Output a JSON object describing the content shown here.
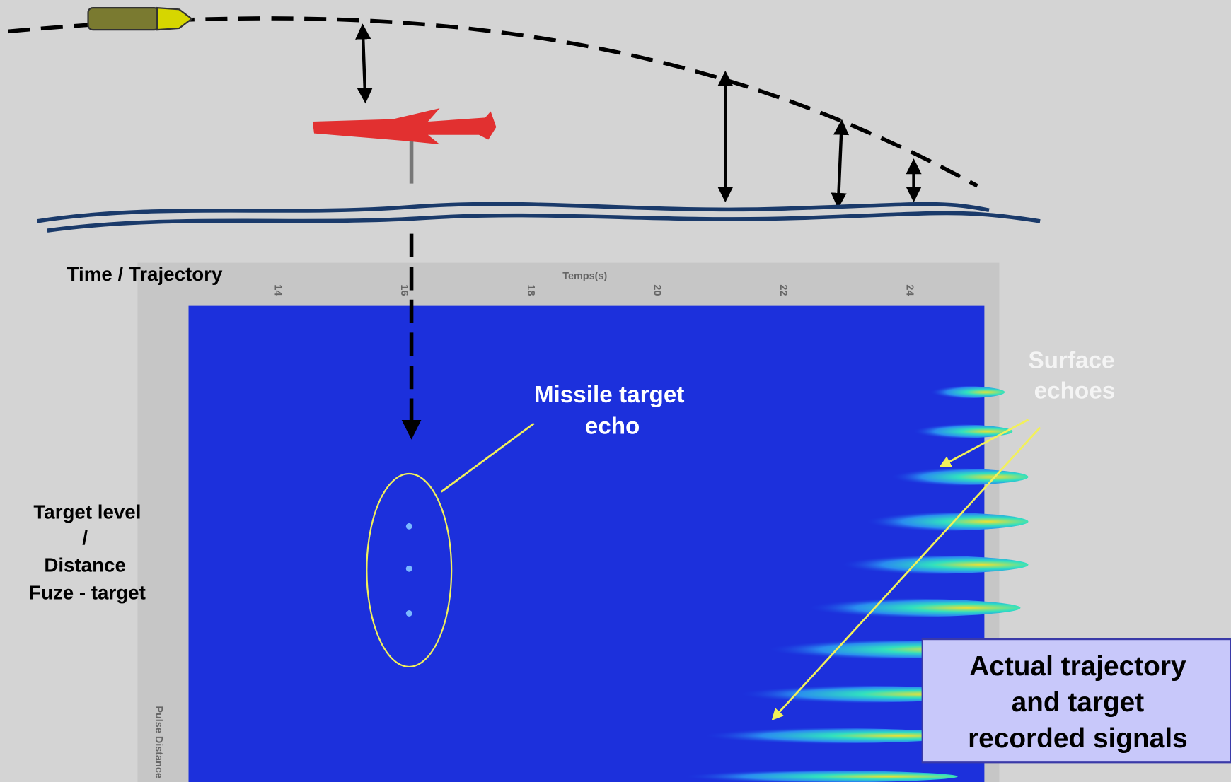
{
  "labels": {
    "time_trajectory": "Time /  Trajectory",
    "target_level": [
      "Target level",
      "/",
      "Distance",
      "Fuze - target"
    ],
    "missile_echo": [
      "Missile target",
      "echo"
    ],
    "surface_echoes": [
      "Surface",
      "echoes"
    ],
    "callout": [
      "Actual trajectory",
      "and target",
      "recorded signals"
    ]
  },
  "spectrogram": {
    "x_axis_title": "Temps(s)",
    "x_ticks": [
      "14",
      "16",
      "18",
      "20",
      "22",
      "24"
    ],
    "y_axis_title": "Pulse Distance"
  }
}
